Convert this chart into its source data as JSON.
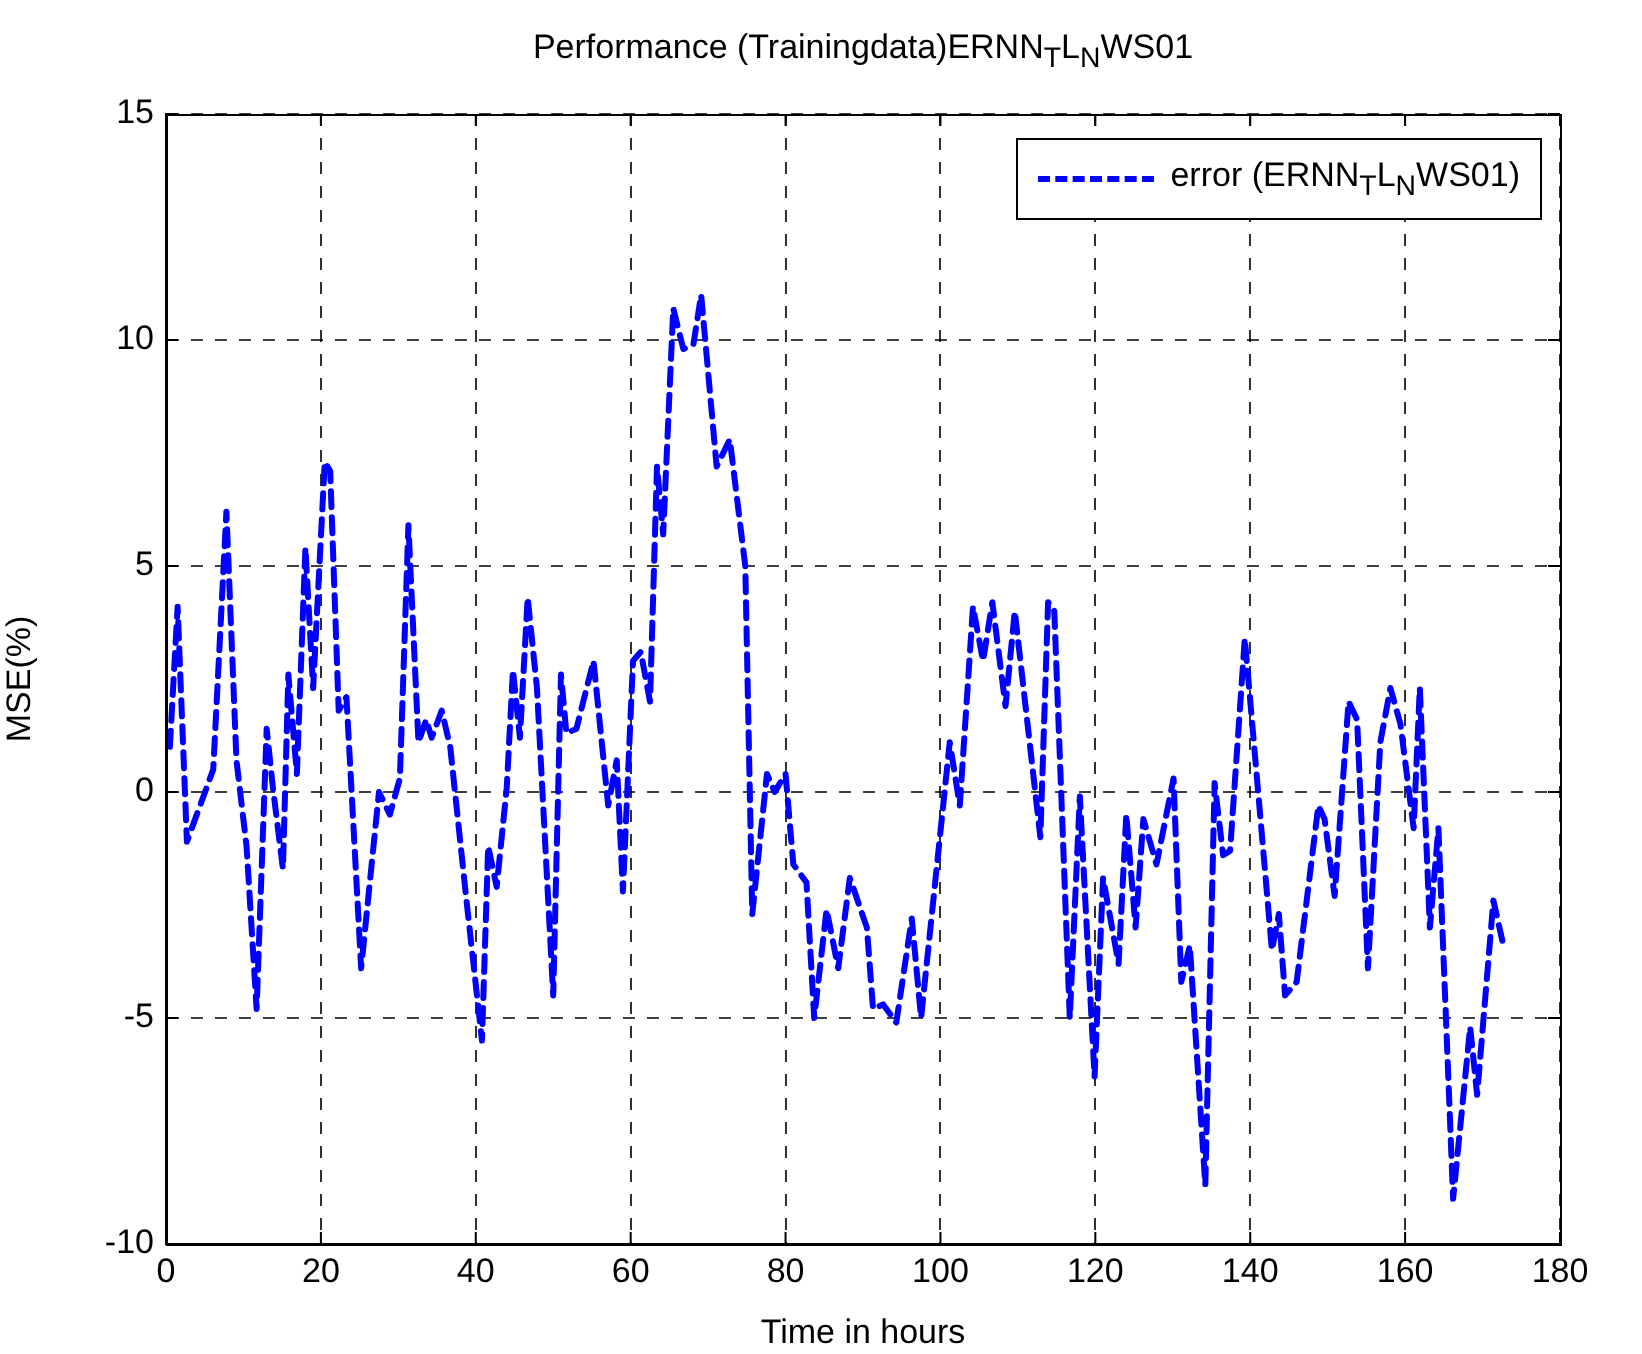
{
  "chart_data": {
    "type": "line",
    "title": "Performance (Trainingdata)ERNN$_{T}$L$_{N}$WS01",
    "xlabel": "Time in hours",
    "ylabel": "MSE(%)",
    "xlim": [
      0,
      180
    ],
    "xticks": [
      0,
      20,
      40,
      60,
      80,
      100,
      120,
      140,
      160,
      180
    ],
    "ylim": [
      -10,
      15
    ],
    "yticks": [
      -10,
      -5,
      0,
      5,
      10,
      15
    ],
    "grid": true,
    "legend": "top right",
    "marker": "none",
    "line_style": "dashed",
    "series": [
      {
        "name": "error (ERNN$_{T}$L$_{N}$WS01)",
        "color": "#0000ff",
        "x": [
          0.5,
          1.5,
          2.7,
          6.1,
          7.8,
          9.1,
          10.4,
          11.7,
          13.0,
          13.8,
          15.1,
          15.8,
          16.9,
          18.0,
          19.0,
          20.5,
          21.2,
          22.3,
          23.3,
          25.2,
          27.5,
          28.9,
          30.2,
          31.3,
          32.6,
          33.6,
          34.3,
          35.6,
          36.7,
          38.8,
          40.8,
          41.6,
          42.7,
          44.0,
          44.8,
          45.7,
          46.7,
          47.9,
          50.0,
          51.0,
          51.7,
          53.0,
          55.2,
          57.1,
          58.2,
          59.0,
          60.3,
          61.3,
          62.5,
          63.4,
          64.2,
          65.5,
          66.8,
          68.1,
          69.1,
          71.1,
          72.8,
          74.8,
          75.7,
          77.6,
          78.6,
          80.0,
          81.0,
          82.7,
          83.7,
          85.3,
          86.8,
          88.3,
          90.5,
          91.3,
          92.6,
          94.3,
          96.3,
          97.5,
          101.2,
          102.5,
          104.2,
          105.5,
          106.7,
          108.4,
          109.6,
          112.9,
          113.9,
          114.7,
          116.7,
          118.0,
          119.9,
          121.0,
          123.0,
          124.0,
          125.2,
          126.2,
          127.9,
          130.1,
          131.1,
          132.2,
          134.2,
          135.4,
          136.5,
          137.4,
          139.3,
          142.8,
          143.7,
          144.5,
          146.0,
          148.8,
          149.6,
          150.9,
          152.7,
          153.8,
          155.2,
          156.8,
          158.1,
          159.4,
          161.1,
          161.9,
          163.2,
          164.3,
          166.2,
          168.4,
          169.3,
          171.4,
          172.7
        ],
        "values": [
          1.0,
          4.1,
          -1.1,
          0.5,
          6.2,
          0.7,
          -1.2,
          -4.8,
          1.4,
          0.1,
          -1.7,
          2.6,
          0.4,
          5.4,
          2.3,
          7.3,
          7.1,
          1.8,
          2.1,
          -3.9,
          0.0,
          -0.5,
          0.3,
          5.9,
          1.1,
          1.6,
          1.2,
          1.8,
          1.0,
          -2.4,
          -5.5,
          -1.2,
          -2.1,
          0.1,
          2.7,
          1.2,
          4.3,
          2.3,
          -4.5,
          2.6,
          1.3,
          1.4,
          2.9,
          -0.3,
          0.7,
          -2.2,
          2.9,
          3.1,
          2.0,
          7.2,
          5.7,
          10.7,
          9.8,
          9.9,
          11.0,
          7.2,
          7.8,
          5.0,
          -2.7,
          0.4,
          0.0,
          0.4,
          -1.6,
          -2.0,
          -5.0,
          -2.6,
          -3.9,
          -1.9,
          -3.0,
          -4.8,
          -4.7,
          -5.1,
          -2.8,
          -5.0,
          1.1,
          -0.3,
          4.1,
          2.9,
          4.2,
          1.9,
          4.0,
          -1.0,
          4.2,
          4.0,
          -5.0,
          -0.1,
          -6.3,
          -1.9,
          -3.8,
          -0.5,
          -3.0,
          -0.6,
          -1.6,
          0.3,
          -4.2,
          -3.4,
          -8.7,
          0.2,
          -1.4,
          -1.3,
          3.4,
          -3.5,
          -2.7,
          -4.5,
          -4.2,
          -0.3,
          -0.6,
          -2.3,
          2.0,
          1.6,
          -3.9,
          1.1,
          2.3,
          1.5,
          -0.8,
          2.3,
          -3.0,
          -0.8,
          -9.0,
          -5.2,
          -6.7,
          -2.4,
          -3.4
        ]
      }
    ]
  }
}
